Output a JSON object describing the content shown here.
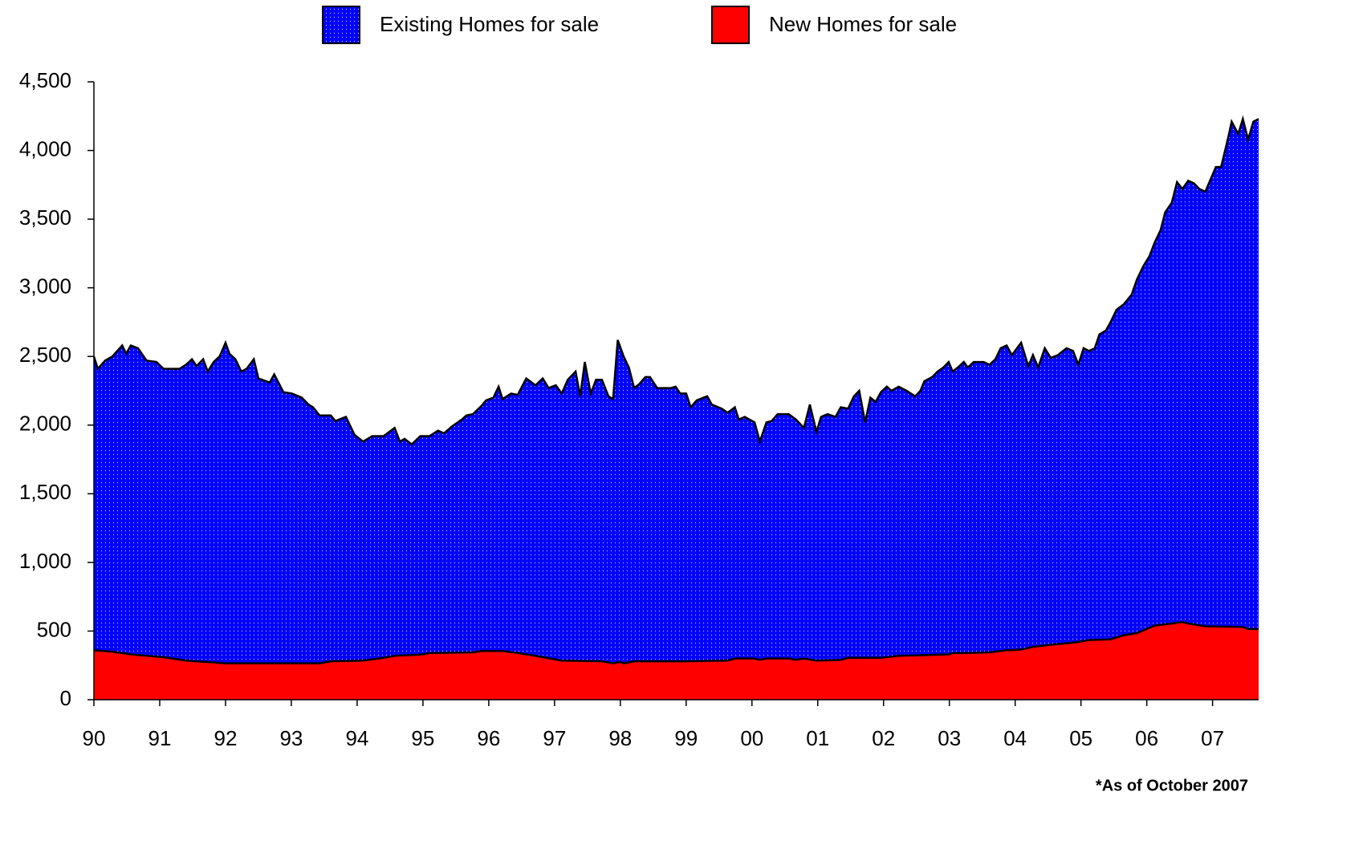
{
  "chart_data": {
    "type": "area",
    "note": "*As of October 2007",
    "xlim": [
      1990,
      2007.7
    ],
    "ylim": [
      0,
      4500
    ],
    "yticks": [
      0,
      500,
      {
        "value": 1000,
        "label": "1,000"
      },
      {
        "value": 1500,
        "label": "1,500"
      },
      {
        "value": 2000,
        "label": "2,000"
      },
      {
        "value": 2500,
        "label": "2,500"
      },
      {
        "value": 3000,
        "label": "3,000"
      },
      {
        "value": 3500,
        "label": "3,500"
      },
      {
        "value": 4000,
        "label": "4,000"
      },
      {
        "value": 4500,
        "label": "4,500"
      }
    ],
    "xticks": [
      {
        "value": 1990,
        "label": "90"
      },
      {
        "value": 1991,
        "label": "91"
      },
      {
        "value": 1992,
        "label": "92"
      },
      {
        "value": 1993,
        "label": "93"
      },
      {
        "value": 1994,
        "label": "94"
      },
      {
        "value": 1995,
        "label": "95"
      },
      {
        "value": 1996,
        "label": "96"
      },
      {
        "value": 1997,
        "label": "97"
      },
      {
        "value": 1998,
        "label": "98"
      },
      {
        "value": 1999,
        "label": "99"
      },
      {
        "value": 2000,
        "label": "00"
      },
      {
        "value": 2001,
        "label": "01"
      },
      {
        "value": 2002,
        "label": "02"
      },
      {
        "value": 2003,
        "label": "03"
      },
      {
        "value": 2004,
        "label": "04"
      },
      {
        "value": 2005,
        "label": "05"
      },
      {
        "value": 2006,
        "label": "06"
      },
      {
        "value": 2007,
        "label": "07"
      }
    ],
    "series": [
      {
        "name": "Existing Homes for sale",
        "color": "#0000ff",
        "pattern": "dots",
        "x": [
          1990.0,
          1990.06,
          1990.17,
          1990.28,
          1990.43,
          1990.49,
          1990.56,
          1990.67,
          1990.8,
          1990.95,
          1991.06,
          1991.3,
          1991.4,
          1991.49,
          1991.56,
          1991.66,
          1991.73,
          1991.82,
          1991.91,
          1992.0,
          1992.06,
          1992.15,
          1992.24,
          1992.32,
          1992.43,
          1992.5,
          1992.67,
          1992.74,
          1992.88,
          1993.01,
          1993.16,
          1993.26,
          1993.33,
          1993.43,
          1993.6,
          1993.67,
          1993.83,
          1993.96,
          1994.09,
          1994.23,
          1994.4,
          1994.57,
          1994.65,
          1994.72,
          1994.83,
          1994.96,
          1995.1,
          1995.23,
          1995.32,
          1995.44,
          1995.59,
          1995.66,
          1995.76,
          1995.89,
          1995.96,
          1996.07,
          1996.15,
          1996.21,
          1996.34,
          1996.44,
          1996.57,
          1996.71,
          1996.82,
          1996.91,
          1997.02,
          1997.11,
          1997.2,
          1997.32,
          1997.39,
          1997.46,
          1997.55,
          1997.63,
          1997.72,
          1997.82,
          1997.89,
          1997.96,
          1998.05,
          1998.13,
          1998.21,
          1998.29,
          1998.38,
          1998.45,
          1998.56,
          1998.77,
          1998.84,
          1998.91,
          1999.0,
          1999.07,
          1999.16,
          1999.32,
          1999.39,
          1999.54,
          1999.63,
          1999.74,
          1999.8,
          1999.89,
          2000.04,
          2000.12,
          2000.22,
          2000.3,
          2000.39,
          2000.56,
          2000.67,
          2000.79,
          2000.88,
          2000.98,
          2001.05,
          2001.15,
          2001.27,
          2001.35,
          2001.46,
          2001.55,
          2001.63,
          2001.72,
          2001.8,
          2001.88,
          2001.96,
          2002.05,
          2002.12,
          2002.23,
          2002.35,
          2002.48,
          2002.56,
          2002.62,
          2002.74,
          2002.82,
          2002.91,
          2002.99,
          2003.05,
          2003.13,
          2003.22,
          2003.28,
          2003.37,
          2003.52,
          2003.61,
          2003.7,
          2003.78,
          2003.87,
          2003.95,
          2004.09,
          2004.2,
          2004.27,
          2004.35,
          2004.45,
          2004.54,
          2004.65,
          2004.78,
          2004.88,
          2004.96,
          2005.04,
          2005.12,
          2005.21,
          2005.28,
          2005.38,
          2005.45,
          2005.54,
          2005.65,
          2005.77,
          2005.85,
          2005.95,
          2006.04,
          2006.12,
          2006.21,
          2006.28,
          2006.38,
          2006.46,
          2006.54,
          2006.63,
          2006.72,
          2006.8,
          2006.89,
          2007.05,
          2007.13,
          2007.24,
          2007.29,
          2007.39,
          2007.46,
          2007.54,
          2007.62,
          2007.7
        ],
        "values": [
          2500,
          2410,
          2470,
          2500,
          2580,
          2520,
          2580,
          2560,
          2470,
          2460,
          2410,
          2410,
          2440,
          2480,
          2430,
          2480,
          2390,
          2460,
          2500,
          2600,
          2520,
          2480,
          2390,
          2410,
          2480,
          2340,
          2310,
          2370,
          2240,
          2230,
          2200,
          2150,
          2130,
          2070,
          2070,
          2030,
          2060,
          1930,
          1880,
          1920,
          1920,
          1980,
          1880,
          1900,
          1860,
          1920,
          1920,
          1960,
          1940,
          1990,
          2040,
          2070,
          2080,
          2140,
          2180,
          2200,
          2280,
          2190,
          2230,
          2220,
          2340,
          2290,
          2340,
          2270,
          2290,
          2230,
          2330,
          2390,
          2210,
          2460,
          2230,
          2330,
          2330,
          2210,
          2190,
          2620,
          2500,
          2420,
          2270,
          2300,
          2350,
          2350,
          2270,
          2270,
          2280,
          2230,
          2230,
          2130,
          2180,
          2210,
          2150,
          2120,
          2090,
          2130,
          2040,
          2060,
          2020,
          1880,
          2020,
          2030,
          2080,
          2080,
          2040,
          1980,
          2150,
          1950,
          2060,
          2080,
          2060,
          2130,
          2120,
          2210,
          2250,
          2020,
          2200,
          2170,
          2240,
          2280,
          2250,
          2280,
          2250,
          2210,
          2250,
          2320,
          2350,
          2390,
          2420,
          2460,
          2390,
          2420,
          2460,
          2420,
          2460,
          2460,
          2440,
          2480,
          2560,
          2580,
          2510,
          2600,
          2430,
          2510,
          2420,
          2560,
          2490,
          2510,
          2560,
          2540,
          2440,
          2560,
          2540,
          2560,
          2660,
          2690,
          2750,
          2840,
          2880,
          2950,
          3060,
          3160,
          3230,
          3330,
          3420,
          3550,
          3620,
          3770,
          3720,
          3780,
          3760,
          3720,
          3700,
          3880,
          3880,
          4100,
          4210,
          4120,
          4230,
          4080,
          4210,
          4230
        ]
      },
      {
        "name": "New Homes for sale",
        "color": "#ff0000",
        "x": [
          1990.0,
          1990.28,
          1990.56,
          1991.06,
          1991.4,
          1992.0,
          1993.0,
          1993.43,
          1993.6,
          1994.09,
          1994.4,
          1994.57,
          1995.0,
          1995.1,
          1995.76,
          1995.89,
          1996.21,
          1996.44,
          1996.71,
          1997.11,
          1997.72,
          1997.89,
          1998.0,
          1998.05,
          1998.21,
          1999.0,
          1999.63,
          1999.74,
          2000.04,
          2000.12,
          2000.22,
          2000.56,
          2000.67,
          2000.79,
          2000.98,
          2001.35,
          2001.46,
          2001.96,
          2002.23,
          2002.99,
          2003.05,
          2003.22,
          2003.61,
          2003.87,
          2004.09,
          2004.27,
          2004.54,
          2004.96,
          2005.12,
          2005.45,
          2005.65,
          2005.85,
          2005.95,
          2006.12,
          2006.38,
          2006.54,
          2006.63,
          2006.89,
          2007.46,
          2007.54,
          2007.7
        ],
        "values": [
          360,
          350,
          330,
          310,
          285,
          265,
          265,
          265,
          280,
          285,
          305,
          320,
          330,
          340,
          345,
          355,
          355,
          340,
          320,
          285,
          280,
          265,
          275,
          265,
          280,
          280,
          285,
          300,
          300,
          290,
          300,
          300,
          290,
          300,
          285,
          290,
          305,
          305,
          320,
          330,
          340,
          340,
          345,
          360,
          365,
          385,
          400,
          420,
          435,
          440,
          470,
          485,
          505,
          540,
          555,
          565,
          555,
          535,
          530,
          515,
          515
        ]
      }
    ]
  }
}
